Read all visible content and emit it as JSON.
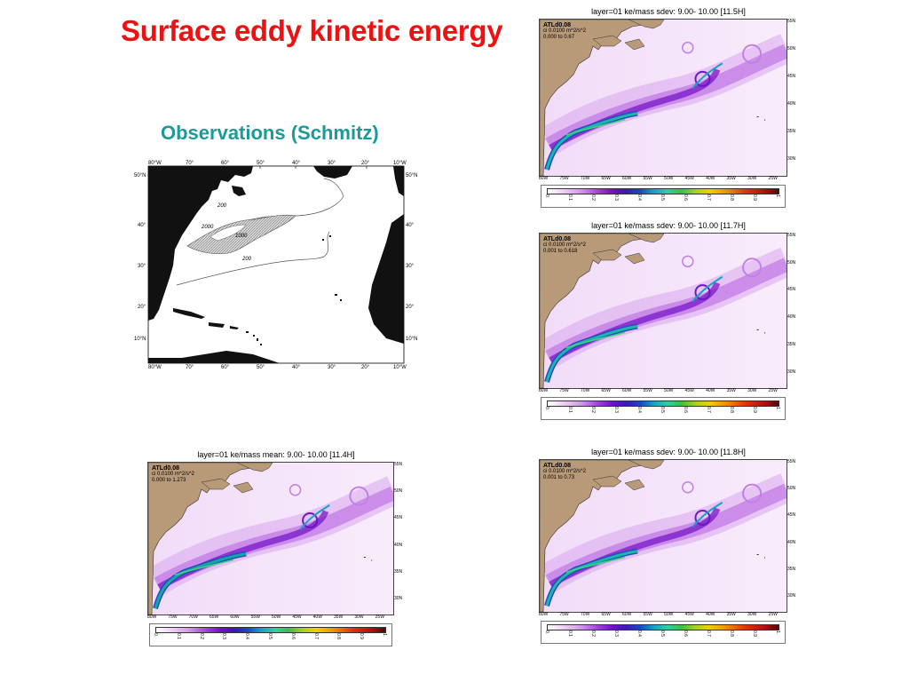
{
  "title": "Surface eddy kinetic energy",
  "subtitle": "Observations (Schmitz)",
  "observations": {
    "lon_labels": [
      "80°W",
      "70°",
      "60°",
      "50°",
      "40°",
      "30°",
      "20°",
      "10°W"
    ],
    "lat_labels_left": [
      "50°N",
      "40°",
      "30°",
      "20°",
      "10°N"
    ],
    "lat_labels_right": [
      "50°N",
      "40°",
      "30°",
      "20°",
      "10°N"
    ],
    "contours": [
      "200",
      "2000",
      "1000",
      "200"
    ]
  },
  "panels": [
    {
      "title": "layer=01  ke/mass  sdev:    9.00-  10.00 [11.5H]",
      "name": "ATLd0.08",
      "ci": "ci 0.0100 m^2/s^2",
      "range": "0.000 to 0.67"
    },
    {
      "title": "layer=01  ke/mass  sdev:    9.00-  10.00 [11.7H]",
      "name": "ATLd0.08",
      "ci": "ci 0.0100 m^2/s^2",
      "range": "0.001 to 0.618"
    },
    {
      "title": "layer=01  ke/mass  mean:   9.00-  10.00 [11.4H]",
      "name": "ATLd0.08",
      "ci": "ci 0.0100 m^2/s^2",
      "range": "0.000 to 1.273"
    },
    {
      "title": "layer=01  ke/mass  sdev:    9.00-  10.00 [11.8H]",
      "name": "ATLd0.08",
      "ci": "ci 0.0100 m^2/s^2",
      "range": "0.001 to 0.73"
    }
  ],
  "lat_labels": [
    "55N",
    "50N",
    "45N",
    "40N",
    "35N",
    "30N"
  ],
  "lon_labels": [
    "80W",
    "75W",
    "70W",
    "65W",
    "60W",
    "55W",
    "50W",
    "45W",
    "40W",
    "35W",
    "30W",
    "25W"
  ],
  "colorbar_ticks": [
    "0.",
    "0.1",
    "0.2",
    "0.3",
    "0.4",
    "0.5",
    "0.6",
    "0.7",
    "0.8",
    "0.9",
    "1."
  ],
  "colors": {
    "title": "#ee1111",
    "subtitle": "#1b9a9a",
    "land": "#b89a78"
  }
}
